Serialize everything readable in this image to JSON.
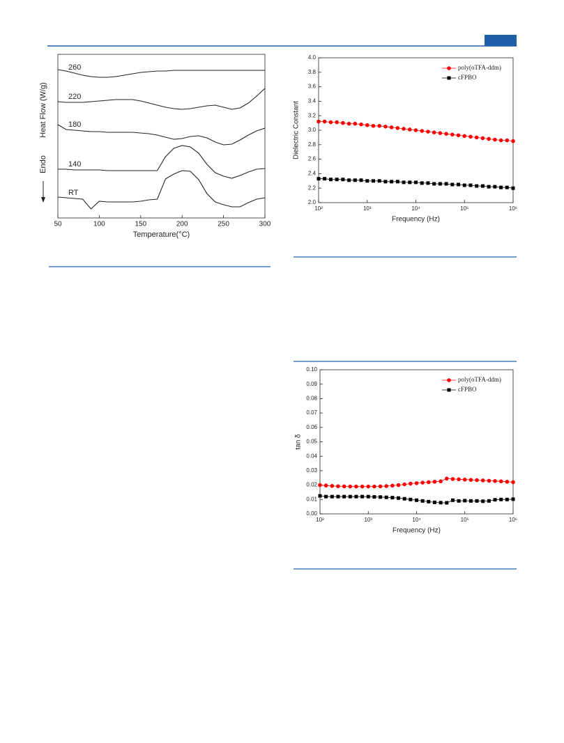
{
  "chart_data": [
    {
      "type": "line",
      "xlabel": "Temperature(°C)",
      "ylabel": "Heat Flow (W/g)",
      "annotation": "Endo",
      "xlim": [
        50,
        300
      ],
      "xticks": [
        50,
        100,
        150,
        200,
        250,
        300
      ],
      "ylim": [
        0,
        235
      ],
      "x": [
        50,
        60,
        70,
        80,
        90,
        100,
        110,
        120,
        130,
        140,
        150,
        160,
        170,
        180,
        190,
        200,
        210,
        220,
        230,
        240,
        250,
        260,
        270,
        280,
        290,
        300
      ],
      "series": [
        {
          "name": "260",
          "color": "#222222",
          "values": [
            213,
            211,
            208,
            205,
            203,
            202,
            202,
            203,
            205,
            207,
            209,
            210,
            211,
            211,
            212,
            212,
            212,
            212,
            212,
            212,
            212,
            212,
            212,
            212,
            212,
            212
          ]
        },
        {
          "name": "220",
          "color": "#222222",
          "values": [
            167,
            166,
            166,
            166,
            167,
            168,
            169,
            170,
            170,
            170,
            168,
            165,
            162,
            159,
            157,
            156,
            157,
            159,
            161,
            162,
            159,
            156,
            158,
            165,
            175,
            186
          ]
        },
        {
          "name": "180",
          "color": "#222222",
          "values": [
            134,
            127,
            126,
            125,
            124,
            124,
            123,
            123,
            123,
            123,
            122,
            121,
            119,
            116,
            113,
            114,
            117,
            118,
            115,
            109,
            105,
            106,
            112,
            119,
            125,
            129
          ]
        },
        {
          "name": "140",
          "color": "#222222",
          "values": [
            70,
            70,
            69,
            69,
            69,
            69,
            68,
            68,
            68,
            68,
            68,
            68,
            68,
            88,
            100,
            104,
            102,
            93,
            77,
            65,
            60,
            57,
            61,
            66,
            70,
            71
          ]
        },
        {
          "name": "RT",
          "color": "#222222",
          "values": [
            30,
            29,
            28,
            27,
            13,
            24,
            23,
            23,
            23,
            23,
            24,
            26,
            27,
            56,
            63,
            68,
            67,
            55,
            35,
            23,
            19,
            16,
            16,
            22,
            27,
            29
          ]
        }
      ]
    },
    {
      "type": "line",
      "xlabel": "Frequency (Hz)",
      "ylabel": "Dielectric Constant",
      "log_x": true,
      "legend": "upper right",
      "xlim": [
        100,
        1000000
      ],
      "xticks": [
        {
          "value": 100,
          "label": "10²"
        },
        {
          "value": 1000,
          "label": "10³"
        },
        {
          "value": 10000,
          "label": "10⁴"
        },
        {
          "value": 100000,
          "label": "10⁵"
        },
        {
          "value": 1000000,
          "label": "10⁶"
        }
      ],
      "ylim": [
        2,
        4
      ],
      "yticks": [
        {
          "value": 2,
          "label": "2.0"
        },
        2.2,
        2.4,
        2.6,
        2.8,
        {
          "value": 3,
          "label": "3.0"
        },
        3.2,
        3.4,
        3.6,
        3.8,
        {
          "value": 4,
          "label": "4.0"
        }
      ],
      "x": [
        100,
        133,
        178,
        237,
        316,
        422,
        562,
        750,
        1000,
        1334,
        1778,
        2371,
        3162,
        4217,
        5623,
        7499,
        10000,
        13335,
        17783,
        23714,
        31623,
        42170,
        56234,
        74989,
        100000,
        133352,
        177828,
        237137,
        316228,
        421697,
        562341,
        749894,
        1000000
      ],
      "series": [
        {
          "name": "poly(oTFA-ddm)",
          "color": "#ff0000",
          "marker": "circle",
          "values": [
            3.12,
            3.12,
            3.11,
            3.11,
            3.1,
            3.09,
            3.09,
            3.08,
            3.07,
            3.06,
            3.06,
            3.05,
            3.04,
            3.03,
            3.02,
            3.01,
            3.0,
            2.99,
            2.98,
            2.97,
            2.96,
            2.95,
            2.94,
            2.93,
            2.92,
            2.91,
            2.9,
            2.89,
            2.88,
            2.87,
            2.86,
            2.86,
            2.85
          ]
        },
        {
          "name": "cFPBO",
          "color": "#000000",
          "marker": "square",
          "values": [
            2.33,
            2.33,
            2.32,
            2.32,
            2.32,
            2.31,
            2.31,
            2.31,
            2.3,
            2.3,
            2.3,
            2.29,
            2.29,
            2.29,
            2.28,
            2.28,
            2.28,
            2.27,
            2.27,
            2.26,
            2.26,
            2.26,
            2.25,
            2.25,
            2.24,
            2.24,
            2.23,
            2.23,
            2.22,
            2.22,
            2.21,
            2.21,
            2.2
          ]
        }
      ]
    },
    {
      "type": "line",
      "xlabel": "Frequency (Hz)",
      "ylabel": "tan δ",
      "log_x": true,
      "legend": "upper right",
      "xlim": [
        100,
        1000000
      ],
      "xticks": [
        {
          "value": 100,
          "label": "10²"
        },
        {
          "value": 1000,
          "label": "10³"
        },
        {
          "value": 10000,
          "label": "10⁴"
        },
        {
          "value": 100000,
          "label": "10⁵"
        },
        {
          "value": 1000000,
          "label": "10⁶"
        }
      ],
      "ylim": [
        0,
        0.1
      ],
      "yticks": [
        {
          "value": 0,
          "label": "0.00"
        },
        0.01,
        0.02,
        0.03,
        0.04,
        0.05,
        0.06,
        0.07,
        0.08,
        0.09,
        {
          "value": 0.1,
          "label": "0.10"
        }
      ],
      "x": [
        100,
        133,
        178,
        237,
        316,
        422,
        562,
        750,
        1000,
        1334,
        1778,
        2371,
        3162,
        4217,
        5623,
        7499,
        10000,
        13335,
        17783,
        23714,
        31623,
        42170,
        56234,
        74989,
        100000,
        133352,
        177828,
        237137,
        316228,
        421697,
        562341,
        749894,
        1000000
      ],
      "series": [
        {
          "name": "poly(oTFA-ddm)",
          "color": "#ff0000",
          "marker": "circle",
          "values": [
            0.02,
            0.0197,
            0.0194,
            0.0192,
            0.0191,
            0.019,
            0.019,
            0.019,
            0.019,
            0.019,
            0.0191,
            0.0193,
            0.0196,
            0.02,
            0.0205,
            0.021,
            0.0213,
            0.0217,
            0.022,
            0.0223,
            0.0226,
            0.0245,
            0.0242,
            0.024,
            0.0238,
            0.0236,
            0.0234,
            0.0232,
            0.023,
            0.0228,
            0.0226,
            0.0223,
            0.022
          ]
        },
        {
          "name": "cFPBO",
          "color": "#000000",
          "marker": "square",
          "values": [
            0.0125,
            0.012,
            0.012,
            0.012,
            0.012,
            0.012,
            0.012,
            0.012,
            0.012,
            0.0118,
            0.0117,
            0.0115,
            0.0113,
            0.011,
            0.0105,
            0.01,
            0.0095,
            0.009,
            0.0085,
            0.008,
            0.0078,
            0.0077,
            0.0095,
            0.009,
            0.0092,
            0.009,
            0.009,
            0.0088,
            0.009,
            0.0098,
            0.01,
            0.01,
            0.0102
          ]
        }
      ]
    }
  ]
}
